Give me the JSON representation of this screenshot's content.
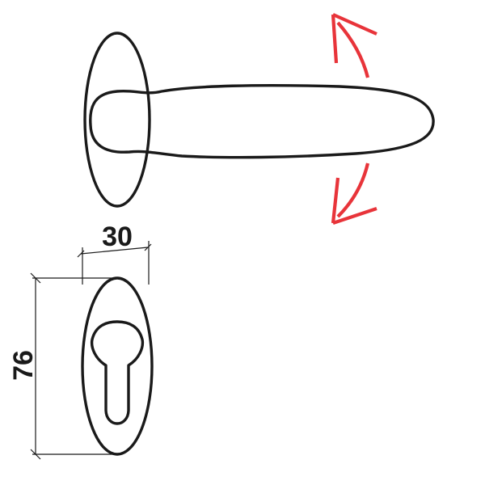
{
  "dimensions": {
    "width_label": "30",
    "height_label": "76"
  },
  "colors": {
    "outline": "#1a1a1a",
    "arrow": "#e8343a",
    "background": "#ffffff"
  },
  "icons": {
    "up_arrow": "rotate-up-arrow-icon",
    "down_arrow": "rotate-down-arrow-icon"
  }
}
